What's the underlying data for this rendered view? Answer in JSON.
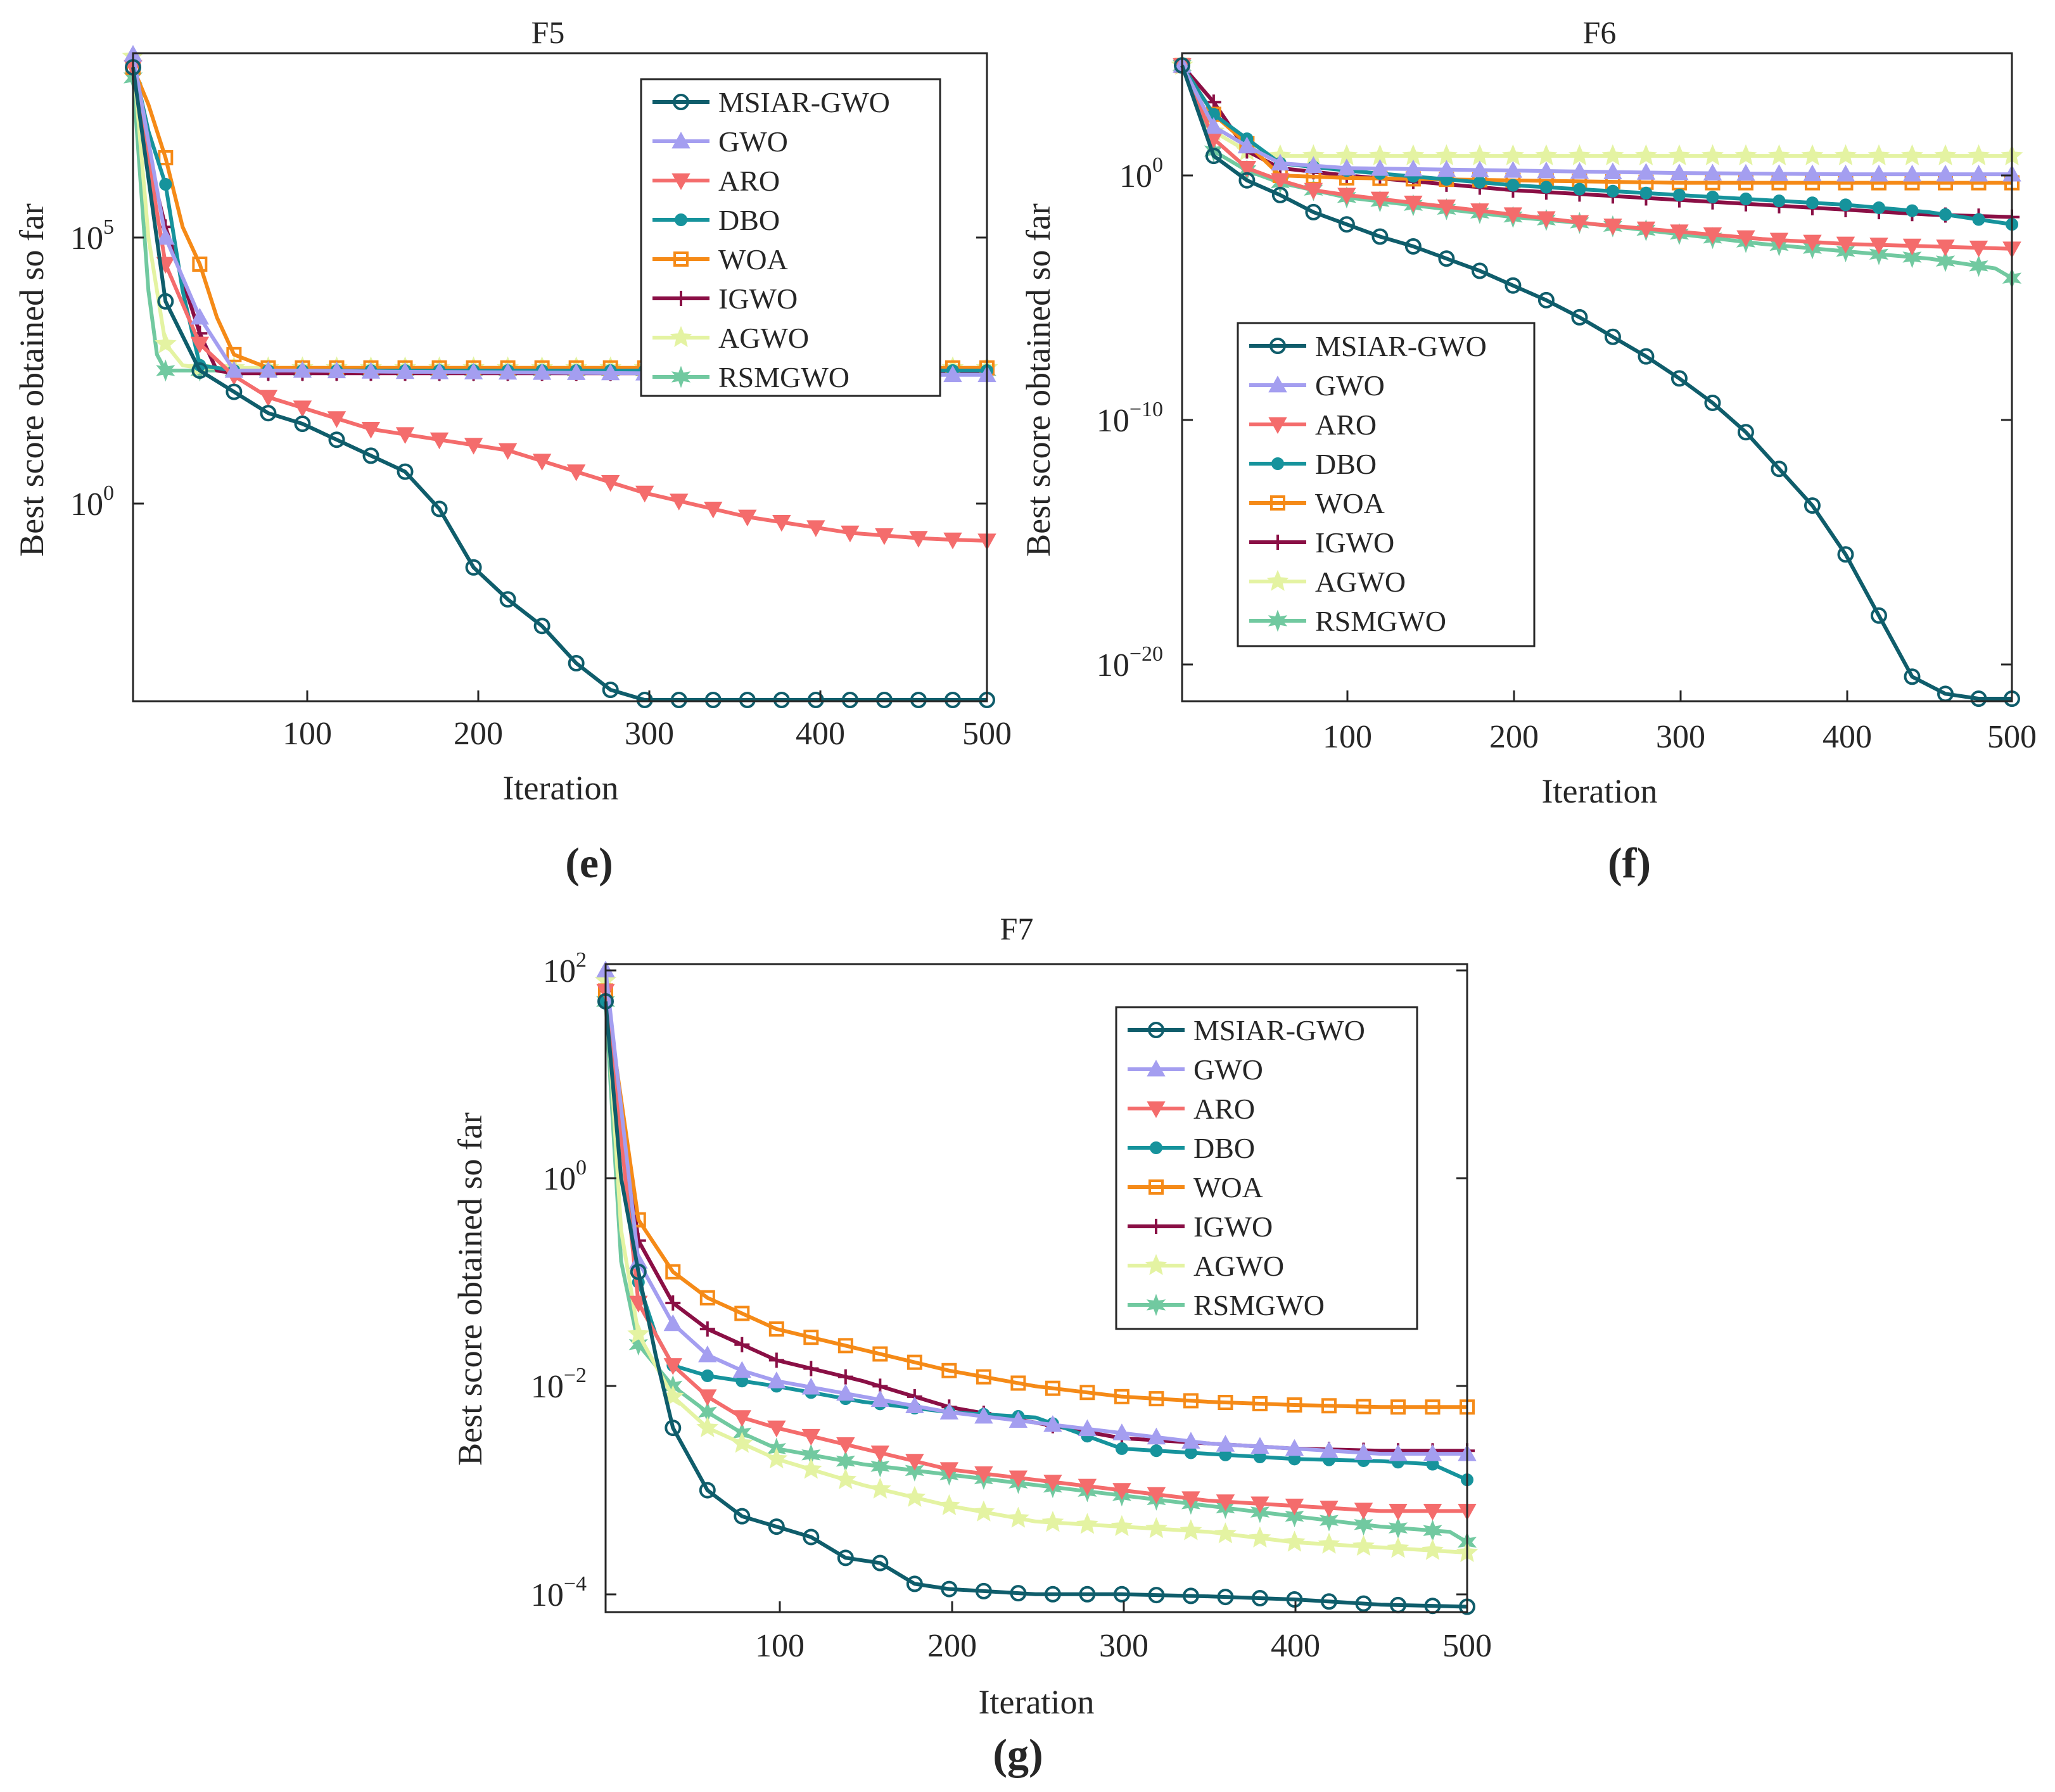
{
  "series_styles": [
    {
      "name": "MSIAR-GWO",
      "color": "#0f5d6b",
      "marker": "circle"
    },
    {
      "name": "GWO",
      "color": "#a49ef0",
      "marker": "triangle-up"
    },
    {
      "name": "ARO",
      "color": "#f46c6c",
      "marker": "triangle-down"
    },
    {
      "name": "DBO",
      "color": "#16939c",
      "marker": "dot"
    },
    {
      "name": "WOA",
      "color": "#f58a17",
      "marker": "square"
    },
    {
      "name": "IGWO",
      "color": "#8a0f45",
      "marker": "plus"
    },
    {
      "name": "AGWO",
      "color": "#e4f3a2",
      "marker": "star"
    },
    {
      "name": "RSMGWO",
      "color": "#71c9a0",
      "marker": "hexagram"
    }
  ],
  "chart_data": [
    {
      "type": "line",
      "id": "F5",
      "title": "F5",
      "panel_label": "(e)",
      "xlabel": "Iteration",
      "ylabel": "Best score obtained so far",
      "yscale": "log",
      "xlim": [
        1,
        500
      ],
      "ylim_exp": [
        -4,
        8.5
      ],
      "xticks": [
        "100",
        "200",
        "300",
        "400",
        "500"
      ],
      "yticks": [
        {
          "base": "10",
          "exp": "5",
          "v": 5
        },
        {
          "base": "10",
          "exp": "0",
          "v": 0
        }
      ],
      "legend_position": "top-right",
      "series": [
        {
          "name": "MSIAR-GWO",
          "x": [
            1,
            20,
            40,
            60,
            80,
            100,
            120,
            140,
            160,
            180,
            200,
            220,
            240,
            260,
            280,
            300,
            320,
            340,
            360,
            380,
            400,
            420,
            440,
            460,
            480,
            500
          ],
          "log10y": [
            8.2,
            3.8,
            2.5,
            2.1,
            1.7,
            1.5,
            1.2,
            0.9,
            0.6,
            -0.1,
            -1.2,
            -1.8,
            -2.3,
            -3.0,
            -3.5,
            -3.72,
            -3.72,
            -3.72,
            -3.72,
            -3.72,
            -3.72,
            -3.72,
            -3.72,
            -3.72,
            -3.72,
            -3.72
          ]
        },
        {
          "name": "GWO",
          "x": [
            1,
            20,
            40,
            60,
            80,
            100,
            150,
            200,
            250,
            300,
            350,
            400,
            450,
            500
          ],
          "log10y": [
            8.5,
            5.0,
            3.5,
            2.5,
            2.5,
            2.5,
            2.48,
            2.47,
            2.46,
            2.45,
            2.44,
            2.43,
            2.42,
            2.42
          ]
        },
        {
          "name": "ARO",
          "x": [
            1,
            20,
            40,
            60,
            80,
            100,
            120,
            140,
            160,
            180,
            200,
            220,
            240,
            260,
            280,
            300,
            320,
            340,
            360,
            380,
            400,
            420,
            440,
            460,
            480,
            500
          ],
          "log10y": [
            8.2,
            4.5,
            3.0,
            2.4,
            2.0,
            1.8,
            1.6,
            1.4,
            1.3,
            1.2,
            1.1,
            1.0,
            0.8,
            0.6,
            0.4,
            0.2,
            0.05,
            -0.1,
            -0.25,
            -0.35,
            -0.45,
            -0.55,
            -0.6,
            -0.65,
            -0.68,
            -0.7
          ]
        },
        {
          "name": "DBO",
          "x": [
            1,
            10,
            20,
            30,
            40,
            60,
            80,
            100,
            200,
            300,
            400,
            500
          ],
          "log10y": [
            8.3,
            7.0,
            6.0,
            4.0,
            2.6,
            2.5,
            2.5,
            2.5,
            2.5,
            2.5,
            2.5,
            2.5
          ]
        },
        {
          "name": "WOA",
          "x": [
            1,
            10,
            20,
            30,
            40,
            50,
            60,
            80,
            100,
            200,
            300,
            400,
            500
          ],
          "log10y": [
            8.2,
            7.5,
            6.5,
            5.2,
            4.5,
            3.5,
            2.8,
            2.55,
            2.55,
            2.55,
            2.55,
            2.55,
            2.55
          ]
        },
        {
          "name": "IGWO",
          "x": [
            1,
            10,
            20,
            30,
            40,
            50,
            60,
            80,
            100,
            200,
            300,
            400,
            500
          ],
          "log10y": [
            8.1,
            6.5,
            5.2,
            4.2,
            3.2,
            2.5,
            2.45,
            2.45,
            2.45,
            2.45,
            2.45,
            2.45,
            2.45
          ]
        },
        {
          "name": "AGWO",
          "x": [
            1,
            10,
            20,
            30,
            40,
            60,
            80,
            100,
            200,
            300,
            400,
            500
          ],
          "log10y": [
            8.4,
            5.0,
            3.0,
            2.6,
            2.55,
            2.55,
            2.55,
            2.55,
            2.55,
            2.55,
            2.55,
            2.55
          ]
        },
        {
          "name": "RSMGWO",
          "x": [
            1,
            10,
            15,
            20,
            40,
            60,
            80,
            100,
            200,
            300,
            400,
            500
          ],
          "log10y": [
            8.0,
            4.0,
            2.8,
            2.5,
            2.5,
            2.5,
            2.5,
            2.5,
            2.5,
            2.5,
            2.5,
            2.5
          ]
        }
      ]
    },
    {
      "type": "line",
      "id": "F6",
      "title": "F6",
      "panel_label": "(f)",
      "xlabel": "Iteration",
      "ylabel": "Best score obtained so far",
      "yscale": "log",
      "xlim": [
        1,
        500
      ],
      "ylim_exp": [
        -21.5,
        5
      ],
      "xticks": [
        "100",
        "200",
        "300",
        "400",
        "500"
      ],
      "yticks": [
        {
          "base": "10",
          "exp": "0",
          "v": 0
        },
        {
          "base": "10",
          "exp": "−10",
          "v": -10
        },
        {
          "base": "10",
          "exp": "−20",
          "v": -20
        }
      ],
      "legend_position": "bottom-left",
      "series": [
        {
          "name": "MSIAR-GWO",
          "x": [
            1,
            20,
            40,
            60,
            80,
            100,
            120,
            140,
            160,
            180,
            200,
            220,
            240,
            260,
            280,
            300,
            320,
            340,
            360,
            380,
            400,
            420,
            440,
            460,
            480,
            500
          ],
          "log10y": [
            4.5,
            0.8,
            -0.2,
            -0.8,
            -1.5,
            -2.0,
            -2.5,
            -2.9,
            -3.4,
            -3.9,
            -4.5,
            -5.1,
            -5.8,
            -6.6,
            -7.4,
            -8.3,
            -9.3,
            -10.5,
            -12.0,
            -13.5,
            -15.5,
            -18.0,
            -20.5,
            -21.2,
            -21.4,
            -21.4
          ]
        },
        {
          "name": "GWO",
          "x": [
            1,
            20,
            40,
            60,
            100,
            200,
            300,
            400,
            500
          ],
          "log10y": [
            4.5,
            2.0,
            1.2,
            0.5,
            0.3,
            0.2,
            0.1,
            0.05,
            0.05
          ]
        },
        {
          "name": "ARO",
          "x": [
            1,
            20,
            40,
            60,
            80,
            100,
            150,
            200,
            250,
            300,
            350,
            400,
            450,
            500
          ],
          "log10y": [
            4.5,
            1.5,
            0.3,
            -0.2,
            -0.6,
            -0.8,
            -1.2,
            -1.6,
            -2.0,
            -2.3,
            -2.6,
            -2.8,
            -2.9,
            -3.0
          ]
        },
        {
          "name": "DBO",
          "x": [
            1,
            20,
            40,
            60,
            100,
            150,
            200,
            250,
            300,
            350,
            400,
            450,
            480,
            500
          ],
          "log10y": [
            4.5,
            2.5,
            1.5,
            0.5,
            0.2,
            -0.1,
            -0.4,
            -0.6,
            -0.8,
            -1.0,
            -1.2,
            -1.5,
            -1.8,
            -2.0
          ]
        },
        {
          "name": "WOA",
          "x": [
            1,
            20,
            40,
            60,
            100,
            200,
            300,
            400,
            500
          ],
          "log10y": [
            4.5,
            2.5,
            1.3,
            0.0,
            -0.1,
            -0.2,
            -0.3,
            -0.3,
            -0.3
          ]
        },
        {
          "name": "IGWO",
          "x": [
            1,
            20,
            40,
            60,
            100,
            150,
            200,
            250,
            300,
            350,
            400,
            450,
            500
          ],
          "log10y": [
            4.5,
            3.0,
            1.0,
            0.3,
            0.0,
            -0.3,
            -0.6,
            -0.8,
            -1.0,
            -1.2,
            -1.4,
            -1.6,
            -1.7
          ]
        },
        {
          "name": "AGWO",
          "x": [
            1,
            20,
            40,
            60,
            100,
            200,
            300,
            400,
            500
          ],
          "log10y": [
            4.5,
            1.8,
            1.0,
            0.8,
            0.8,
            0.8,
            0.8,
            0.8,
            0.8
          ]
        },
        {
          "name": "RSMGWO",
          "x": [
            1,
            20,
            40,
            60,
            80,
            100,
            150,
            200,
            250,
            300,
            350,
            400,
            450,
            490,
            500
          ],
          "log10y": [
            4.5,
            1.0,
            0.2,
            -0.3,
            -0.6,
            -0.9,
            -1.3,
            -1.7,
            -2.0,
            -2.4,
            -2.8,
            -3.1,
            -3.4,
            -3.8,
            -4.2
          ]
        }
      ]
    },
    {
      "type": "line",
      "id": "F7",
      "title": "F7",
      "panel_label": "(g)",
      "xlabel": "Iteration",
      "ylabel": "Best score obtained so far",
      "yscale": "log",
      "xlim": [
        1,
        500
      ],
      "ylim_exp": [
        -4.2,
        2.1
      ],
      "xticks": [
        "100",
        "200",
        "300",
        "400",
        "500"
      ],
      "yticks": [
        {
          "base": "10",
          "exp": "2",
          "v": 2
        },
        {
          "base": "10",
          "exp": "0",
          "v": 0
        },
        {
          "base": "10",
          "exp": "−2",
          "v": -2
        },
        {
          "base": "10",
          "exp": "−4",
          "v": -4
        }
      ],
      "legend_position": "top-right",
      "series": [
        {
          "name": "MSIAR-GWO",
          "x": [
            1,
            10,
            20,
            30,
            40,
            60,
            80,
            100,
            120,
            140,
            160,
            180,
            200,
            250,
            300,
            350,
            400,
            450,
            500
          ],
          "log10y": [
            1.7,
            0.0,
            -0.9,
            -1.7,
            -2.4,
            -3.0,
            -3.25,
            -3.35,
            -3.45,
            -3.65,
            -3.7,
            -3.9,
            -3.95,
            -4.0,
            -4.0,
            -4.02,
            -4.05,
            -4.1,
            -4.12
          ]
        },
        {
          "name": "GWO",
          "x": [
            1,
            20,
            40,
            60,
            80,
            100,
            150,
            200,
            250,
            300,
            350,
            400,
            450,
            500
          ],
          "log10y": [
            2.0,
            -0.8,
            -1.4,
            -1.7,
            -1.85,
            -1.95,
            -2.1,
            -2.25,
            -2.35,
            -2.45,
            -2.55,
            -2.6,
            -2.65,
            -2.65
          ]
        },
        {
          "name": "ARO",
          "x": [
            1,
            20,
            40,
            60,
            80,
            100,
            150,
            200,
            250,
            300,
            350,
            400,
            450,
            500
          ],
          "log10y": [
            1.8,
            -1.2,
            -1.8,
            -2.1,
            -2.3,
            -2.4,
            -2.6,
            -2.8,
            -2.9,
            -3.0,
            -3.1,
            -3.15,
            -3.2,
            -3.2
          ]
        },
        {
          "name": "DBO",
          "x": [
            1,
            10,
            20,
            30,
            40,
            60,
            80,
            100,
            150,
            200,
            250,
            300,
            350,
            400,
            450,
            480,
            500
          ],
          "log10y": [
            1.7,
            0.5,
            -1.0,
            -1.5,
            -1.8,
            -1.9,
            -1.95,
            -2.0,
            -2.15,
            -2.25,
            -2.3,
            -2.6,
            -2.65,
            -2.7,
            -2.72,
            -2.75,
            -2.9
          ]
        },
        {
          "name": "WOA",
          "x": [
            1,
            20,
            40,
            60,
            80,
            100,
            150,
            200,
            250,
            300,
            350,
            400,
            450,
            500
          ],
          "log10y": [
            1.8,
            -0.4,
            -0.9,
            -1.15,
            -1.3,
            -1.45,
            -1.65,
            -1.85,
            -2.0,
            -2.1,
            -2.15,
            -2.18,
            -2.2,
            -2.2
          ]
        },
        {
          "name": "IGWO",
          "x": [
            1,
            20,
            40,
            60,
            80,
            100,
            150,
            200,
            250,
            300,
            350,
            400,
            450,
            500
          ],
          "log10y": [
            1.8,
            -0.6,
            -1.2,
            -1.45,
            -1.6,
            -1.75,
            -1.95,
            -2.2,
            -2.35,
            -2.5,
            -2.55,
            -2.6,
            -2.62,
            -2.62
          ]
        },
        {
          "name": "AGWO",
          "x": [
            1,
            10,
            20,
            40,
            60,
            80,
            100,
            150,
            200,
            250,
            300,
            350,
            400,
            450,
            500
          ],
          "log10y": [
            1.9,
            -0.5,
            -1.5,
            -2.1,
            -2.4,
            -2.55,
            -2.7,
            -2.95,
            -3.15,
            -3.3,
            -3.35,
            -3.4,
            -3.5,
            -3.55,
            -3.6
          ]
        },
        {
          "name": "RSMGWO",
          "x": [
            1,
            10,
            20,
            40,
            60,
            80,
            100,
            150,
            200,
            250,
            300,
            350,
            400,
            450,
            490,
            500
          ],
          "log10y": [
            1.7,
            -0.8,
            -1.6,
            -2.0,
            -2.25,
            -2.45,
            -2.6,
            -2.75,
            -2.85,
            -2.95,
            -3.05,
            -3.15,
            -3.25,
            -3.35,
            -3.4,
            -3.5
          ]
        }
      ]
    }
  ]
}
